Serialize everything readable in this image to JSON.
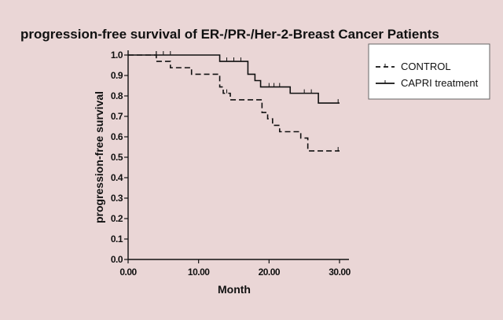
{
  "chart_data": {
    "type": "line",
    "title": "progression-free survival of ER-/PR-/Her-2-Breast Cancer Patients",
    "xlabel": "Month",
    "ylabel": "progression-free survival",
    "xlim": [
      0,
      30
    ],
    "ylim": [
      0,
      1.0
    ],
    "xticks": [
      0,
      10,
      20,
      30
    ],
    "xtick_labels": [
      "0.00",
      "10.00",
      "20.00",
      "30.00"
    ],
    "yticks": [
      0,
      0.1,
      0.2,
      0.3,
      0.4,
      0.5,
      0.6,
      0.7,
      0.8,
      0.9,
      1.0
    ],
    "ytick_labels": [
      "0.0",
      "0.1",
      "0.2",
      "0.3",
      "0.4",
      "0.5",
      "0.6",
      "0.7",
      "0.8",
      "0.9",
      "1.0"
    ],
    "grid": false,
    "legend_position": "right",
    "series": [
      {
        "name": "CONTROL",
        "style": "dashed",
        "color": "#111111",
        "steps": [
          [
            0,
            1.0
          ],
          [
            4,
            0.969
          ],
          [
            6,
            0.938
          ],
          [
            9,
            0.906
          ],
          [
            13,
            0.844
          ],
          [
            13.5,
            0.813
          ],
          [
            14.5,
            0.781
          ],
          [
            19,
            0.719
          ],
          [
            19.8,
            0.688
          ],
          [
            20.5,
            0.656
          ],
          [
            21.5,
            0.625
          ],
          [
            24.5,
            0.594
          ],
          [
            25.5,
            0.531
          ],
          [
            30,
            0.531
          ]
        ],
        "censored": [
          [
            4,
            1.0
          ],
          [
            14,
            0.813
          ],
          [
            29.8,
            0.531
          ]
        ]
      },
      {
        "name": "CAPRI treatment",
        "style": "solid",
        "color": "#111111",
        "steps": [
          [
            0,
            1.0
          ],
          [
            13,
            0.969
          ],
          [
            17,
            0.906
          ],
          [
            18,
            0.875
          ],
          [
            18.8,
            0.844
          ],
          [
            23,
            0.813
          ],
          [
            27,
            0.765
          ],
          [
            30,
            0.765
          ]
        ],
        "censored": [
          [
            4,
            1.0
          ],
          [
            5,
            1.0
          ],
          [
            6,
            1.0
          ],
          [
            14,
            0.969
          ],
          [
            15,
            0.969
          ],
          [
            16,
            0.969
          ],
          [
            20,
            0.844
          ],
          [
            20.7,
            0.844
          ],
          [
            21.5,
            0.844
          ],
          [
            25,
            0.813
          ],
          [
            26,
            0.813
          ],
          [
            29.8,
            0.765
          ]
        ]
      }
    ]
  }
}
